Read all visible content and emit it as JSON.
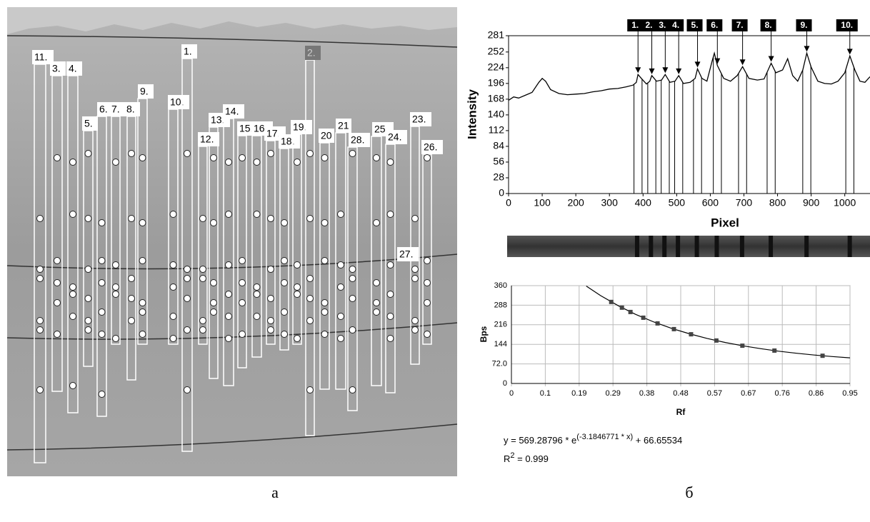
{
  "gel": {
    "lanes": [
      "11.",
      "3.",
      "4.",
      "5.",
      "6.",
      "7.",
      "8.",
      "9.",
      "10.",
      "1.",
      "13.",
      "14.",
      "12.",
      "15.",
      "16.",
      "17.",
      "18.",
      "19.",
      "2.",
      "20",
      "21",
      "28.",
      "25.",
      "24.",
      "23.",
      "26.",
      "27."
    ]
  },
  "chart_data": [
    {
      "type": "line",
      "x_label": "Pixel",
      "y_label": "Intensity",
      "color": "#000000",
      "x": [
        0,
        15,
        30,
        50,
        70,
        90,
        100,
        110,
        125,
        150,
        175,
        200,
        225,
        250,
        275,
        300,
        325,
        350,
        370,
        380,
        385,
        395,
        410,
        420,
        426,
        440,
        455,
        466,
        480,
        495,
        506,
        520,
        540,
        555,
        562,
        575,
        590,
        605,
        612,
        621,
        640,
        660,
        680,
        696,
        715,
        740,
        760,
        781,
        795,
        815,
        830,
        845,
        860,
        875,
        887,
        900,
        920,
        940,
        960,
        980,
        1000,
        1015,
        1030,
        1045,
        1060,
        1075
      ],
      "values": [
        166,
        172,
        170,
        175,
        180,
        198,
        205,
        200,
        185,
        178,
        176,
        177,
        178,
        181,
        183,
        186,
        187,
        190,
        193,
        198,
        212,
        205,
        195,
        200,
        210,
        200,
        202,
        212,
        198,
        200,
        210,
        196,
        198,
        205,
        222,
        205,
        200,
        235,
        250,
        228,
        205,
        200,
        210,
        226,
        205,
        202,
        204,
        232,
        215,
        220,
        240,
        210,
        200,
        220,
        250,
        225,
        200,
        196,
        195,
        200,
        215,
        245,
        220,
        200,
        198,
        208
      ],
      "annotations": [
        {
          "text": "1.",
          "x": 385
        },
        {
          "text": "2.",
          "x": 426
        },
        {
          "text": "3.",
          "x": 466
        },
        {
          "text": "4.",
          "x": 506
        },
        {
          "text": "5.",
          "x": 562
        },
        {
          "text": "6.",
          "x": 621
        },
        {
          "text": "7.",
          "x": 696
        },
        {
          "text": "8.",
          "x": 781
        },
        {
          "text": "9.",
          "x": 887
        },
        {
          "text": "10.",
          "x": 1015
        }
      ],
      "xlim": [
        0,
        1075
      ],
      "ylim": [
        0,
        281
      ],
      "xticks": [
        0,
        100,
        200,
        300,
        400,
        500,
        600,
        700,
        800,
        900,
        1000
      ],
      "yticks": [
        0,
        28,
        56,
        84,
        112,
        140,
        168,
        196,
        224,
        252,
        281
      ],
      "grid": false
    },
    {
      "type": "scatter",
      "x_label": "Rf",
      "y_label": "Bps",
      "color": "#444444",
      "x": [
        0.28,
        0.31,
        0.334,
        0.37,
        0.41,
        0.456,
        0.504,
        0.575,
        0.648,
        0.738,
        0.873
      ],
      "values": [
        300,
        279,
        263,
        242,
        221,
        200,
        181,
        158,
        139,
        121,
        102
      ],
      "fit": {
        "x": [
          0.21,
          0.25,
          0.3,
          0.35,
          0.4,
          0.45,
          0.5,
          0.55,
          0.6,
          0.65,
          0.7,
          0.75,
          0.8,
          0.85,
          0.9,
          0.95
        ],
        "values": [
          358.3,
          323.5,
          285.8,
          253.4,
          225.9,
          202.5,
          182.5,
          165.4,
          150.9,
          138.5,
          128.0,
          118.9,
          111.2,
          104.7,
          99.1,
          94.3
        ]
      },
      "xlim": [
        0,
        0.95
      ],
      "ylim": [
        0,
        360
      ],
      "xticks": [
        0,
        {
          "value": 0.095,
          "label": "0.1"
        },
        0.19,
        {
          "value": 0.285,
          "label": "0.29"
        },
        0.38,
        {
          "value": 0.475,
          "label": "0.48"
        },
        0.57,
        {
          "value": 0.665,
          "label": "0.67"
        },
        0.76,
        {
          "value": 0.855,
          "label": "0.86"
        },
        0.95
      ],
      "yticks": [
        0,
        {
          "value": 72,
          "label": "72.0"
        },
        144,
        216,
        288,
        360
      ],
      "grid": true,
      "equation": {
        "base": "y = 569.28796 * e",
        "exponent": "(-3.1846771 * x)",
        "tail": " + 66.65534"
      },
      "r2": {
        "base": "R",
        "exponent": "2",
        "tail": " = 0.999"
      }
    }
  ],
  "captions": [
    "а",
    "б"
  ]
}
